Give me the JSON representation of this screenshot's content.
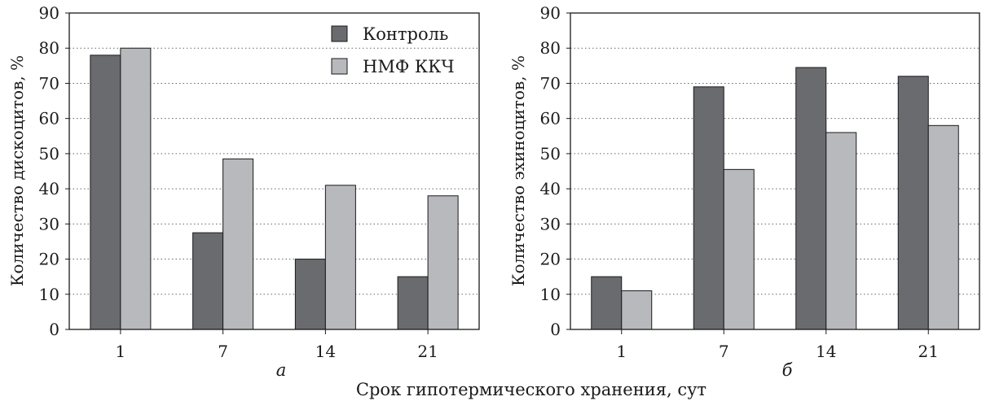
{
  "figure": {
    "xlabel": "Срок гипотермического хранения, сут"
  },
  "chart_data": [
    {
      "type": "bar",
      "panel_label": "а",
      "categories": [
        "1",
        "7",
        "14",
        "21"
      ],
      "ylabel": "Количество дискоцитов, %",
      "ylim": [
        0,
        90
      ],
      "yticks": [
        "0",
        "10",
        "20",
        "30",
        "40",
        "50",
        "60",
        "70",
        "80",
        "90"
      ],
      "grid": "horizontal dotted",
      "legend_position": "top-right",
      "series": [
        {
          "name": "Контроль",
          "color": "#6a6b6f",
          "values": [
            78,
            27.5,
            20,
            15
          ]
        },
        {
          "name": "НМФ ККЧ",
          "color": "#b8b9bd",
          "values": [
            80,
            48.5,
            41,
            38
          ]
        }
      ]
    },
    {
      "type": "bar",
      "panel_label": "б",
      "categories": [
        "1",
        "7",
        "14",
        "21"
      ],
      "ylabel": "Количество эхиноцитов, %",
      "ylim": [
        0,
        90
      ],
      "yticks": [
        "0",
        "10",
        "20",
        "30",
        "40",
        "50",
        "60",
        "70",
        "80",
        "90"
      ],
      "grid": "horizontal dotted",
      "series": [
        {
          "color": "#6a6b6f",
          "values": [
            15,
            69,
            74.5,
            72
          ]
        },
        {
          "color": "#b8b9bd",
          "values": [
            11,
            45.5,
            56,
            58
          ]
        }
      ]
    }
  ]
}
